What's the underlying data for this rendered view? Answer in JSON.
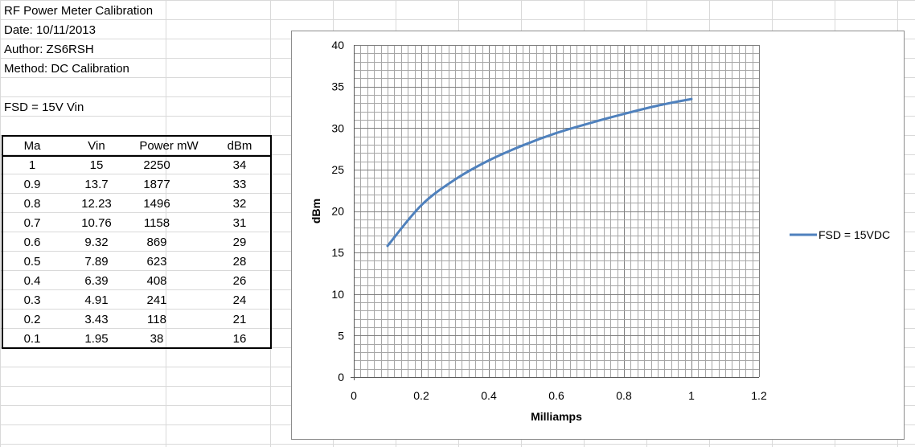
{
  "header_lines": {
    "title": "RF Power Meter Calibration",
    "date": "Date: 10/11/2013",
    "author": "Author: ZS6RSH",
    "method": "Method: DC Calibration",
    "fsd": "FSD = 15V  Vin"
  },
  "table": {
    "headers": [
      "Ma",
      "Vin",
      "Power mW",
      "dBm"
    ],
    "rows": [
      [
        "1",
        "15",
        "2250",
        "34"
      ],
      [
        "0.9",
        "13.7",
        "1877",
        "33"
      ],
      [
        "0.8",
        "12.23",
        "1496",
        "32"
      ],
      [
        "0.7",
        "10.76",
        "1158",
        "31"
      ],
      [
        "0.6",
        "9.32",
        "869",
        "29"
      ],
      [
        "0.5",
        "7.89",
        "623",
        "28"
      ],
      [
        "0.4",
        "6.39",
        "408",
        "26"
      ],
      [
        "0.3",
        "4.91",
        "241",
        "24"
      ],
      [
        "0.2",
        "3.43",
        "118",
        "21"
      ],
      [
        "0.1",
        "1.95",
        "38",
        "16"
      ]
    ]
  },
  "chart_data": {
    "type": "line",
    "title": "",
    "xlabel": "Milliamps",
    "ylabel": "dBm",
    "xlim": [
      0,
      1.2
    ],
    "ylim": [
      0,
      40
    ],
    "x_ticks": [
      "0",
      "0.2",
      "0.4",
      "0.6",
      "0.8",
      "1",
      "1.2"
    ],
    "y_ticks": [
      "0",
      "5",
      "10",
      "15",
      "20",
      "25",
      "30",
      "35",
      "40"
    ],
    "grid": true,
    "legend_position": "right",
    "series": [
      {
        "name": "FSD = 15VDC",
        "color": "#4f81bd",
        "x": [
          0.1,
          0.2,
          0.3,
          0.4,
          0.5,
          0.6,
          0.7,
          0.8,
          0.9,
          1.0
        ],
        "y": [
          15.8,
          20.7,
          23.8,
          26.1,
          27.9,
          29.4,
          30.6,
          31.7,
          32.7,
          33.5
        ]
      }
    ]
  }
}
